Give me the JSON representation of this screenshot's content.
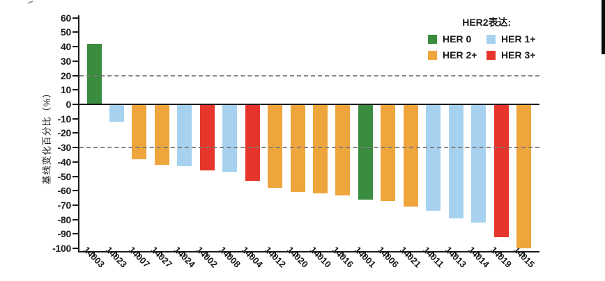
{
  "axis": {
    "y_title": "基线变化百分比（%）"
  },
  "legend": {
    "title": "HER2表达:",
    "items": [
      {
        "label": "HER 0",
        "color": "#3a8c3e"
      },
      {
        "label": "HER 1+",
        "color": "#a6d2f0"
      },
      {
        "label": "HER 2+",
        "color": "#eea63c"
      },
      {
        "label": "HER 3+",
        "color": "#e6352b"
      }
    ]
  },
  "chart_data": {
    "type": "bar",
    "subtype": "waterfall",
    "title": "",
    "xlabel": "",
    "ylabel": "基线变化百分比（%）",
    "ylim": [
      -100,
      60
    ],
    "yticks": [
      60,
      50,
      40,
      30,
      20,
      10,
      0,
      -10,
      -20,
      -30,
      -40,
      -50,
      -60,
      -70,
      -80,
      -90,
      -100
    ],
    "reference_lines": [
      20,
      -30
    ],
    "grid": false,
    "legend_position": "top-right",
    "legend_title": "HER2表达:",
    "group_colors": {
      "HER 0": "#3a8c3e",
      "HER 1+": "#a6d2f0",
      "HER 2+": "#eea63c",
      "HER 3+": "#e6352b"
    },
    "bars": [
      {
        "id": "14003",
        "her2": "HER 0",
        "value": 42
      },
      {
        "id": "14023",
        "her2": "HER 1+",
        "value": -12
      },
      {
        "id": "14007",
        "her2": "HER 2+",
        "value": -38
      },
      {
        "id": "14027",
        "her2": "HER 2+",
        "value": -42
      },
      {
        "id": "14024",
        "her2": "HER 1+",
        "value": -43
      },
      {
        "id": "14002",
        "her2": "HER 3+",
        "value": -46
      },
      {
        "id": "14008",
        "her2": "HER 1+",
        "value": -47
      },
      {
        "id": "14004",
        "her2": "HER 3+",
        "value": -53
      },
      {
        "id": "14012",
        "her2": "HER 2+",
        "value": -58
      },
      {
        "id": "14020",
        "her2": "HER 2+",
        "value": -61
      },
      {
        "id": "14010",
        "her2": "HER 2+",
        "value": -62
      },
      {
        "id": "14016",
        "her2": "HER 2+",
        "value": -63
      },
      {
        "id": "14001",
        "her2": "HER 0",
        "value": -66
      },
      {
        "id": "14006",
        "her2": "HER 2+",
        "value": -67
      },
      {
        "id": "14021",
        "her2": "HER 2+",
        "value": -71
      },
      {
        "id": "14011",
        "her2": "HER 1+",
        "value": -74
      },
      {
        "id": "14013",
        "her2": "HER 1+",
        "value": -79
      },
      {
        "id": "14014",
        "her2": "HER 1+",
        "value": -82
      },
      {
        "id": "14019",
        "her2": "HER 3+",
        "value": -92
      },
      {
        "id": "14015",
        "her2": "HER 2+",
        "value": -100
      }
    ]
  }
}
